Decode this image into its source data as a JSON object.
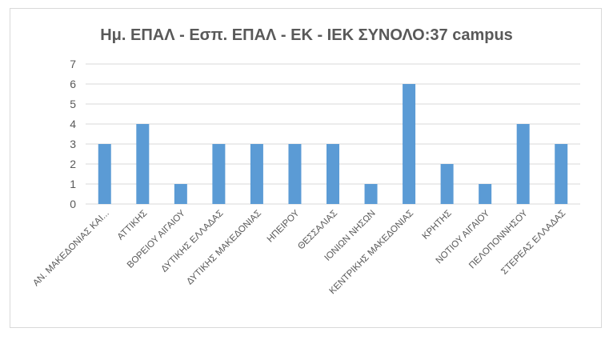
{
  "chart_data": {
    "type": "bar",
    "title": "Ημ. ΕΠΑΛ - Εσπ. ΕΠΑΛ - ΕΚ - ΙΕΚ  ΣΥΝΟΛΟ:37 campus",
    "xlabel": "",
    "ylabel": "",
    "categories": [
      "ΑΝ. ΜΑΚΕΔΟΝΙΑΣ ΚΑΙ...",
      "ΑΤΤΙΚΗΣ",
      "ΒΟΡΕΙΟΥ ΑΙΓΑΙΟΥ",
      "ΔΥΤΙΚΗΣ ΕΛΛΑΔΑΣ",
      "ΔΥΤΙΚΗΣ ΜΑΚΕΔΟΝΙΑΣ",
      "ΗΠΕΙΡΟΥ",
      "ΘΕΣΣΑΛΙΑΣ",
      "ΙΟΝΙΩΝ ΝΗΣΩΝ",
      "ΚΕΝΤΡΙΚΗΣ ΜΑΚΕΔΟΝΙΑΣ",
      "ΚΡΗΤΗΣ",
      "ΝΟΤΙΟΥ ΑΙΓΑΙΟΥ",
      "ΠΕΛΟΠΟΝΝΗΣΟΥ",
      "ΣΤΕΡΕΑΣ ΕΛΛΑΔΑΣ"
    ],
    "values": [
      3,
      4,
      1,
      3,
      3,
      3,
      3,
      1,
      6,
      2,
      1,
      4,
      3
    ],
    "ylim": [
      0,
      7
    ],
    "yticks": [
      0,
      1,
      2,
      3,
      4,
      5,
      6,
      7
    ],
    "grid": true,
    "legend": "none",
    "colors": {
      "bar": "#5b9bd5",
      "grid": "#d9d9d9",
      "axis_text": "#595959"
    }
  }
}
